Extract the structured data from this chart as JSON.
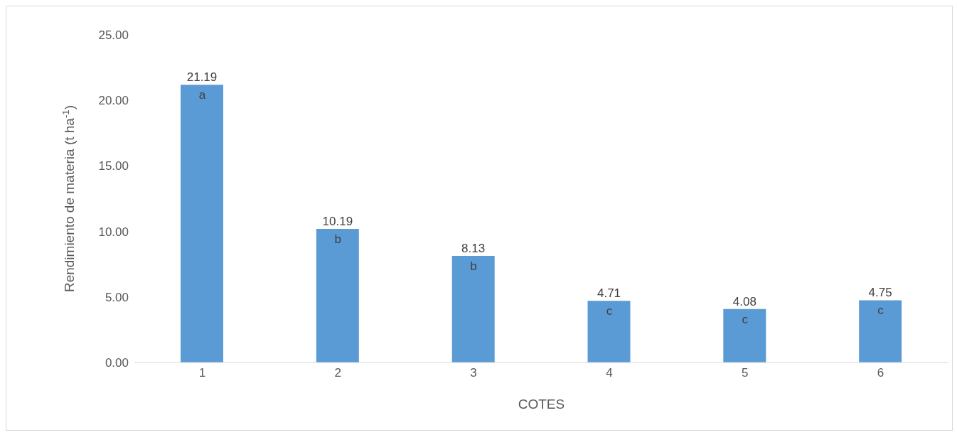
{
  "chart_data": {
    "type": "bar",
    "xlabel": "COTES",
    "ylabel": "Rendimiento de materia  (t ha$^{-1}$)",
    "categories": [
      "1",
      "2",
      "3",
      "4",
      "5",
      "6"
    ],
    "values": [
      21.19,
      10.19,
      8.13,
      4.71,
      4.08,
      4.75
    ],
    "color": "#5b9bd5",
    "ylim": [
      0,
      25
    ],
    "yticks": [
      {
        "value": 0,
        "label": "0.00"
      },
      {
        "value": 5,
        "label": "5.00"
      },
      {
        "value": 10,
        "label": "10.00"
      },
      {
        "value": 15,
        "label": "15.00"
      },
      {
        "value": 20,
        "label": "20.00"
      },
      {
        "value": 25,
        "label": "25.00"
      }
    ],
    "data_labels": true,
    "grid": false,
    "legend": false,
    "annotations": [
      {
        "text": "a",
        "x": "1",
        "y": 21.19
      },
      {
        "text": "b",
        "x": "2",
        "y": 10.19
      },
      {
        "text": "b",
        "x": "3",
        "y": 8.13
      },
      {
        "text": "c",
        "x": "4",
        "y": 4.71
      },
      {
        "text": "c",
        "x": "5",
        "y": 4.08
      },
      {
        "text": "c",
        "x": "6",
        "y": 4.75
      }
    ]
  }
}
